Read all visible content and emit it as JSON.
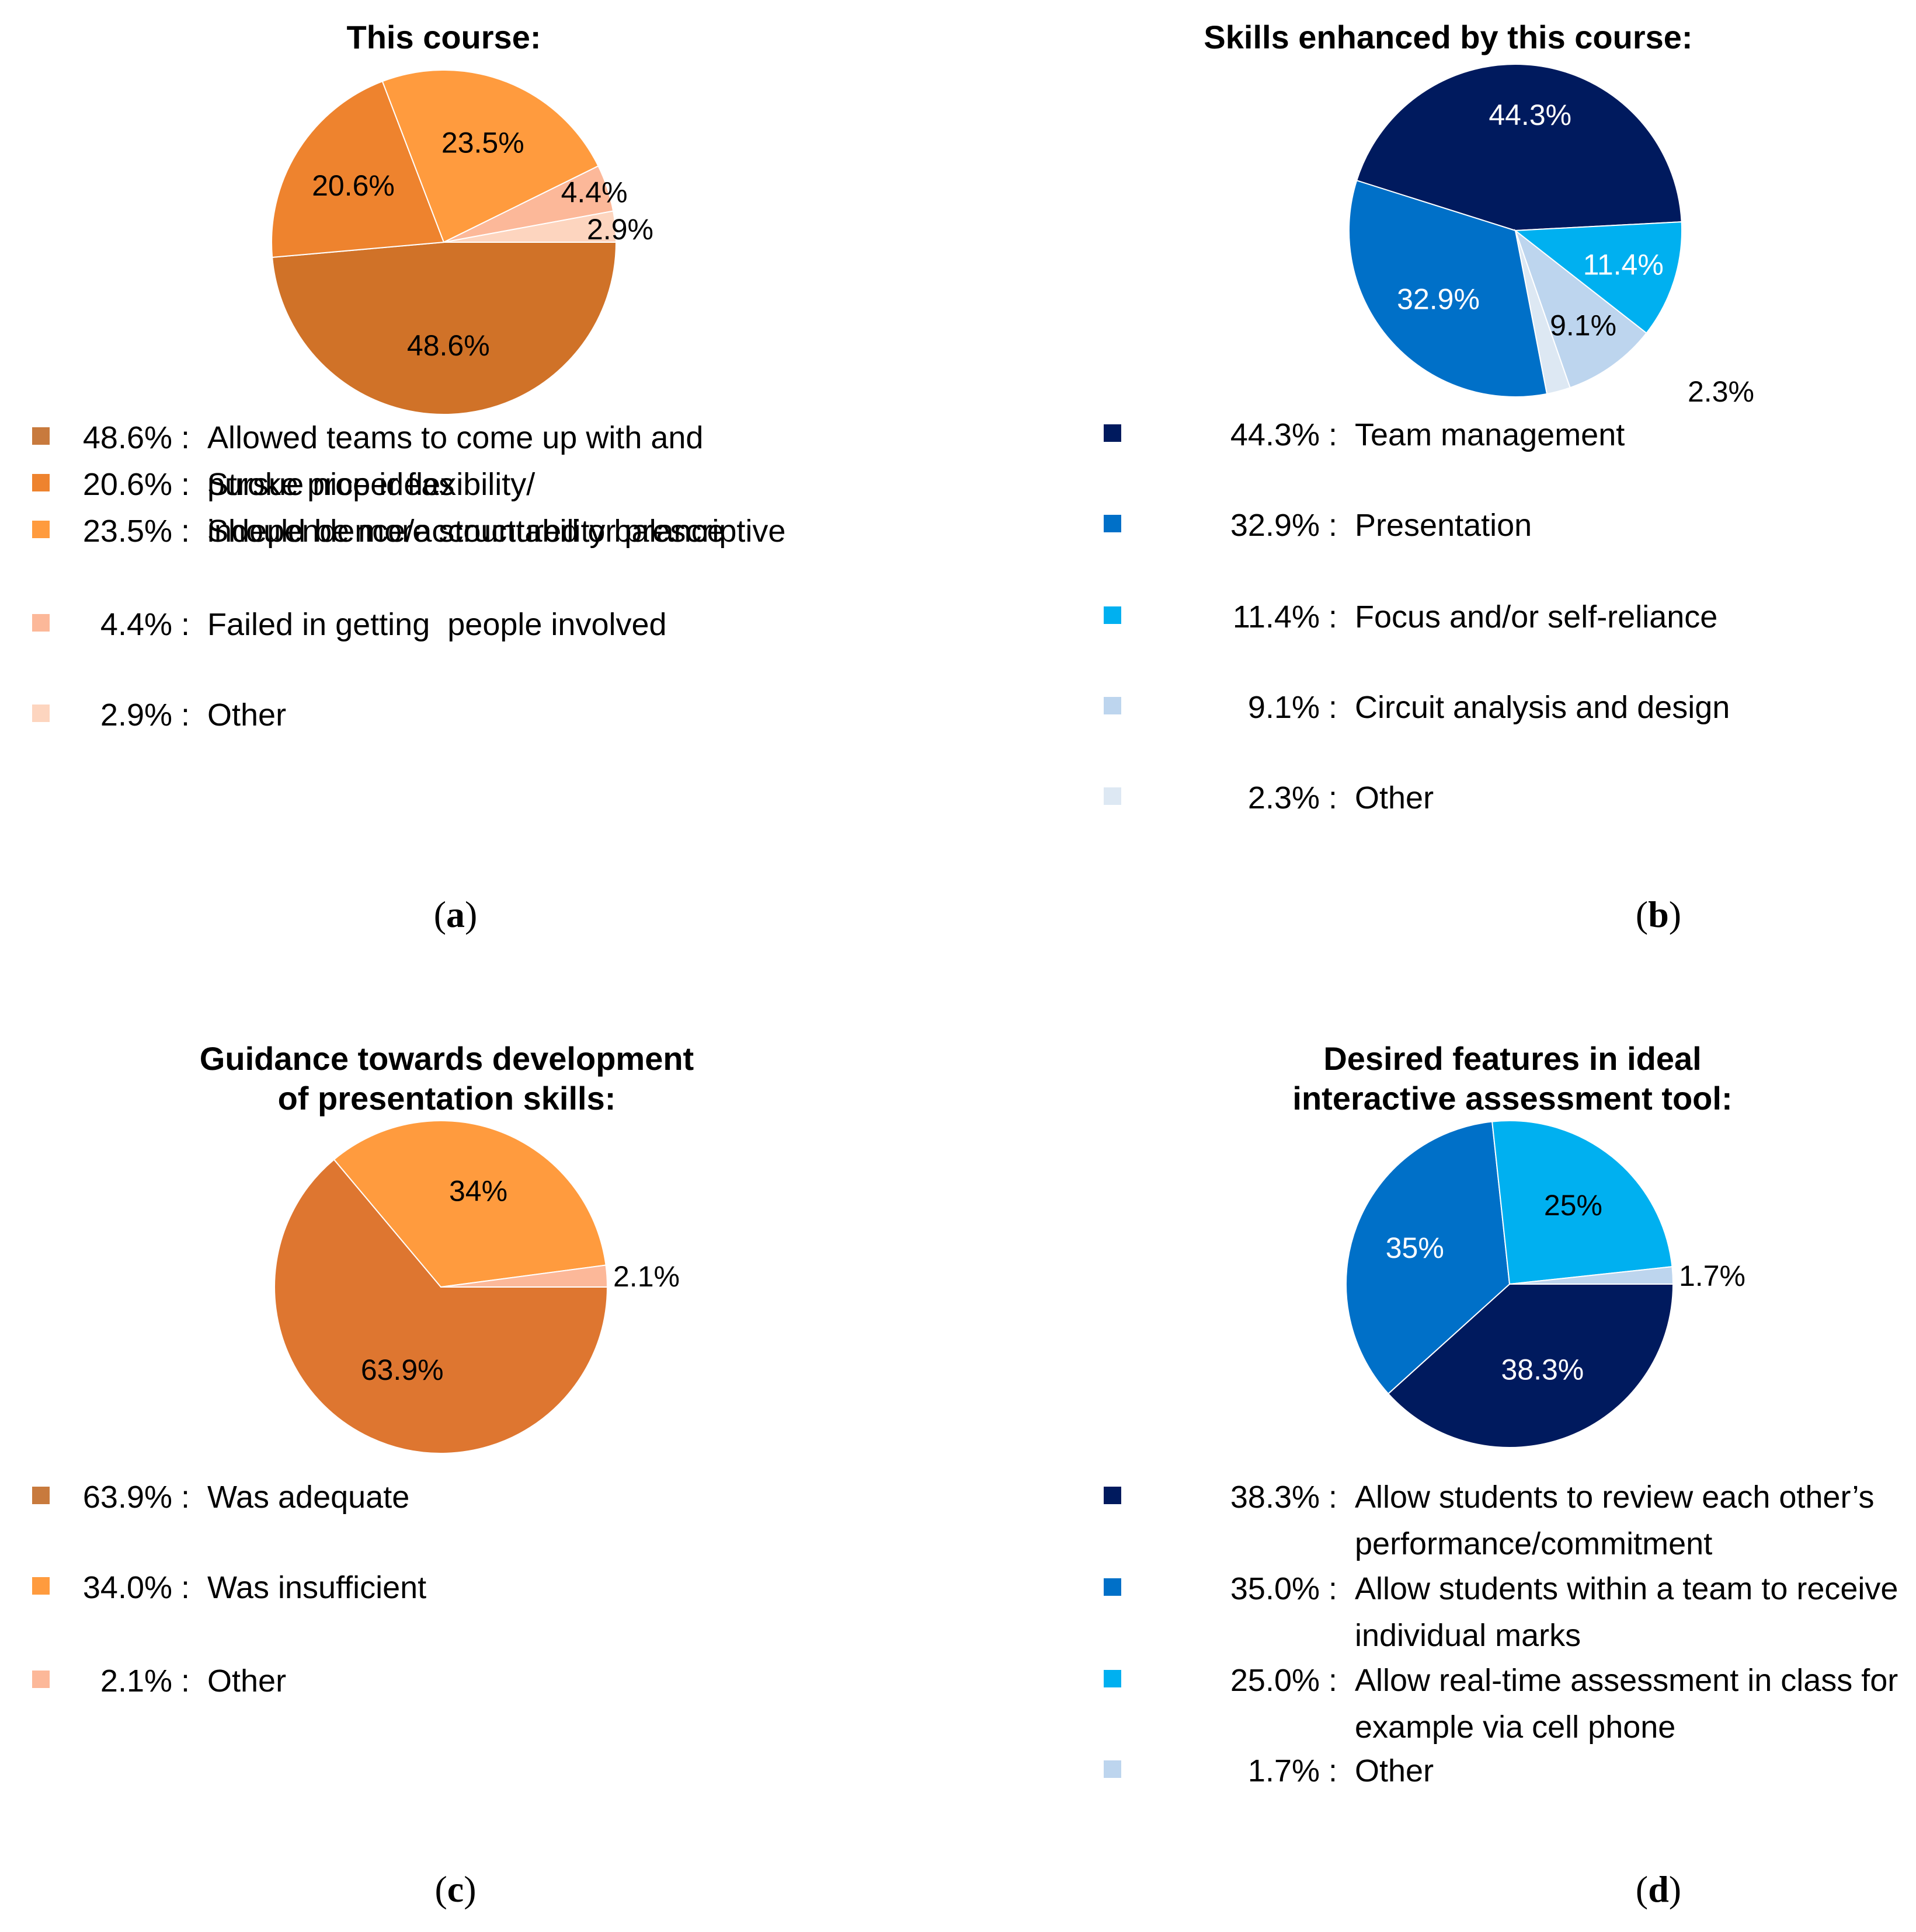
{
  "chart_data": [
    {
      "type": "pie",
      "panel": "a",
      "title": "This course:",
      "caption_letter": "a",
      "slices": [
        {
          "value": 48.6,
          "label": "48.6%",
          "color": "#D07228",
          "label_color": "#000000"
        },
        {
          "value": 20.6,
          "label": "20.6%",
          "color": "#EE832E",
          "label_color": "#000000"
        },
        {
          "value": 23.5,
          "label": "23.5%",
          "color": "#FF9B3E",
          "label_color": "#000000"
        },
        {
          "value": 4.4,
          "label": "4.4%",
          "color": "#FCB899",
          "label_color": "#000000"
        },
        {
          "value": 2.9,
          "label": "2.9%",
          "color": "#FDD5BF",
          "label_color": "#000000"
        }
      ],
      "legend": [
        {
          "pct": "48.6% :",
          "text": "Allowed teams to come up with and\npursue nice ideas",
          "color": "#C87A3D"
        },
        {
          "pct": "20.6% :",
          "text": "Stroke proper flexibility/\nindependence/accountability balance",
          "color": "#EE832E"
        },
        {
          "pct": "23.5% :",
          "text": "Should be more structured or prescriptive",
          "color": "#FF9B3E"
        },
        {
          "pct": "4.4% :",
          "text": "Failed in getting  people involved",
          "color": "#FCB899"
        },
        {
          "pct": "2.9% :",
          "text": "Other",
          "color": "#FDD5BF"
        }
      ]
    },
    {
      "type": "pie",
      "panel": "b",
      "title": "Skills enhanced by this course:",
      "caption_letter": "b",
      "slices": [
        {
          "value": 44.3,
          "label": "44.3%",
          "color": "#001A5E",
          "label_color": "#ffffff"
        },
        {
          "value": 32.9,
          "label": "32.9%",
          "color": "#0070C8",
          "label_color": "#ffffff"
        },
        {
          "value": 2.3,
          "label": "2.3%",
          "color": "#DDE8F3",
          "label_color": "#000000"
        },
        {
          "value": 9.1,
          "label": "9.1%",
          "color": "#BDD5EE",
          "label_color": "#000000"
        },
        {
          "value": 11.4,
          "label": "11.4%",
          "color": "#00B0F0",
          "label_color": "#ffffff"
        }
      ],
      "legend": [
        {
          "pct": "44.3% :",
          "text": "Team management",
          "color": "#001A5E"
        },
        {
          "pct": "32.9% :",
          "text": "Presentation",
          "color": "#0070C8"
        },
        {
          "pct": "11.4% :",
          "text": "Focus and/or self-reliance",
          "color": "#00B0F0"
        },
        {
          "pct": "9.1% :",
          "text": "Circuit analysis and design",
          "color": "#BDD5EE"
        },
        {
          "pct": "2.3% :",
          "text": "Other",
          "color": "#DDE8F3"
        }
      ]
    },
    {
      "type": "pie",
      "panel": "c",
      "title": "Guidance towards development\nof presentation skills:",
      "caption_letter": "c",
      "slices": [
        {
          "value": 63.9,
          "label": "63.9%",
          "color": "#DE7630",
          "label_color": "#000000"
        },
        {
          "value": 34.0,
          "label": "34%",
          "color": "#FF9B3E",
          "label_color": "#000000"
        },
        {
          "value": 2.1,
          "label": "2.1%",
          "color": "#FCB899",
          "label_color": "#000000"
        }
      ],
      "legend": [
        {
          "pct": "63.9% :",
          "text": "Was adequate",
          "color": "#C87A3D"
        },
        {
          "pct": "34.0% :",
          "text": "Was insufficient",
          "color": "#FF9B3E"
        },
        {
          "pct": "2.1% :",
          "text": "Other",
          "color": "#FCB899"
        }
      ]
    },
    {
      "type": "pie",
      "panel": "d",
      "title": "Desired features in ideal\ninteractive assessment tool:",
      "caption_letter": "d",
      "slices": [
        {
          "value": 38.3,
          "label": "38.3%",
          "color": "#001A5E",
          "label_color": "#ffffff"
        },
        {
          "value": 35.0,
          "label": "35%",
          "color": "#0070C8",
          "label_color": "#ffffff"
        },
        {
          "value": 25.0,
          "label": "25%",
          "color": "#00B0F0",
          "label_color": "#000000"
        },
        {
          "value": 1.7,
          "label": "1.7%",
          "color": "#BDD5EE",
          "label_color": "#000000"
        }
      ],
      "legend": [
        {
          "pct": "38.3% :",
          "text": "Allow students to review each other’s\nperformance/commitment",
          "color": "#001A5E"
        },
        {
          "pct": "35.0% :",
          "text": "Allow students within a team to receive\nindividual marks",
          "color": "#0070C8"
        },
        {
          "pct": "25.0% :",
          "text": "Allow real-time assessment in class for\nexample via cell phone",
          "color": "#00B0F0"
        },
        {
          "pct": "1.7% :",
          "text": "Other",
          "color": "#BDD5EE"
        }
      ]
    }
  ]
}
